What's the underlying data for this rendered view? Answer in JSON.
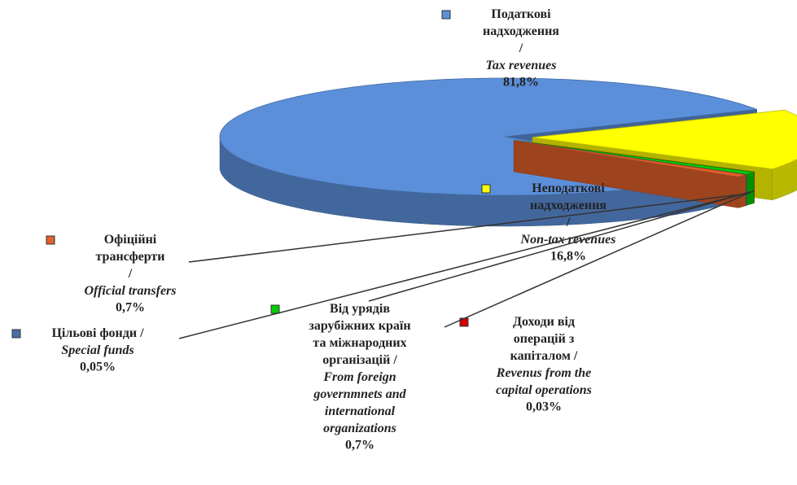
{
  "chart_data": {
    "type": "pie",
    "categories": [
      "Податкові надходження /",
      "Неподаткові надходження /",
      "Доходи від операцій з капіталом /",
      "Від урядів зарубіжних країн та міжнародних організацій /",
      "Цільові фонди /",
      "Офіційні трансферти /"
    ],
    "categories_en": [
      "Tax revenues",
      "Non-tax revenues",
      "Revenus from the capital operations",
      "From foreign governmnets and international organizations",
      "Special funds",
      "Official transfers"
    ],
    "values": [
      81.8,
      16.8,
      0.03,
      0.7,
      0.05,
      0.7
    ],
    "value_labels": [
      "81,8%",
      "16,8%",
      "0,03%",
      "0,7%",
      "0,05%",
      "0,7%"
    ],
    "colors": [
      "#5b8fd9",
      "#ffff00",
      "#d40000",
      "#00cc00",
      "#4a6fa5",
      "#e0602b"
    ]
  }
}
